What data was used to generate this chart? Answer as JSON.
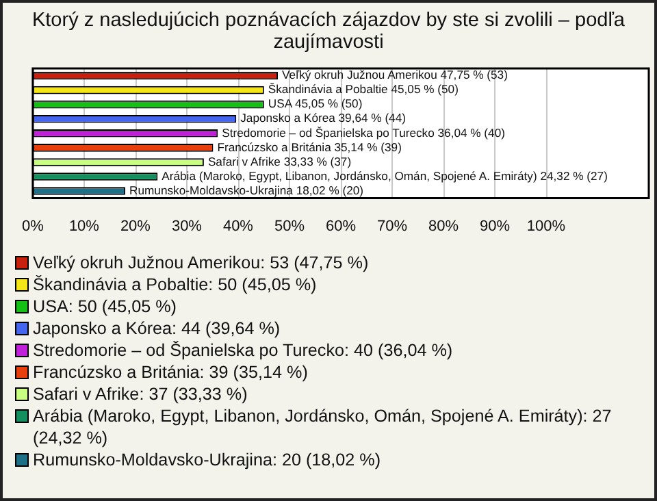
{
  "chart_data": {
    "type": "bar",
    "orientation": "horizontal",
    "title": "Ktorý z nasledujúcich poznávacích zájazdov by ste si zvolili – podľa zaujímavosti",
    "categories": [
      "Veľký okruh Južnou Amerikou",
      "Škandinávia a Pobaltie",
      "USA",
      "Japonsko a Kórea",
      "Stredomorie – od Španielska po Turecko",
      "Francúzsko a Británia",
      "Safari v Afrike",
      "Arábia (Maroko, Egypt, Libanon, Jordánsko, Omán, Spojené A. Emiráty)",
      "Rumunsko-Moldavsko-Ukrajina"
    ],
    "values": [
      47.75,
      45.05,
      45.05,
      39.64,
      36.04,
      35.14,
      33.33,
      24.32,
      18.02
    ],
    "value_labels": [
      "47,75 % (53)",
      "45,05 % (50)",
      "45,05 % (50)",
      "39,64 % (44)",
      "36,04 % (40)",
      "35,14 % (39)",
      "33,33 % (37)",
      "24,32 % (27)",
      "18,02 % (20)"
    ],
    "colors": [
      "#c8200c",
      "#f5e61a",
      "#14c014",
      "#4466ee",
      "#c020d8",
      "#e8400c",
      "#c8ff80",
      "#149060",
      "#1e7088"
    ],
    "xlim": [
      0,
      120
    ],
    "xticks": [
      {
        "value": 0,
        "label": "0%"
      },
      {
        "value": 10,
        "label": "10%"
      },
      {
        "value": 20,
        "label": "20%"
      },
      {
        "value": 30,
        "label": "30%"
      },
      {
        "value": 40,
        "label": "40%"
      },
      {
        "value": 50,
        "label": "50%"
      },
      {
        "value": 60,
        "label": "60%"
      },
      {
        "value": 70,
        "label": "70%"
      },
      {
        "value": 80,
        "label": "80%"
      },
      {
        "value": 90,
        "label": "90%"
      },
      {
        "value": 100,
        "label": "100%"
      }
    ],
    "grid": "x",
    "annotations": [
      "Veľký okruh Južnou Amerikou: 53 (47,75 %)",
      "Škandinávia a Pobaltie: 50 (45,05 %)",
      "USA: 50 (45,05 %)",
      "Japonsko a Kórea: 44 (39,64 %)",
      "Stredomorie – od Španielska po Turecko: 40 (36,04 %)",
      "Francúzsko a Británia: 39 (35,14 %)",
      "Safari v Afrike: 37 (33,33 %)",
      "Arábia (Maroko, Egypt, Libanon, Jordánsko, Omán, Spojené A. Emiráty): 27 (24,32 %)",
      "Rumunsko-Moldavsko-Ukrajina: 20 (18,02 %)"
    ]
  }
}
